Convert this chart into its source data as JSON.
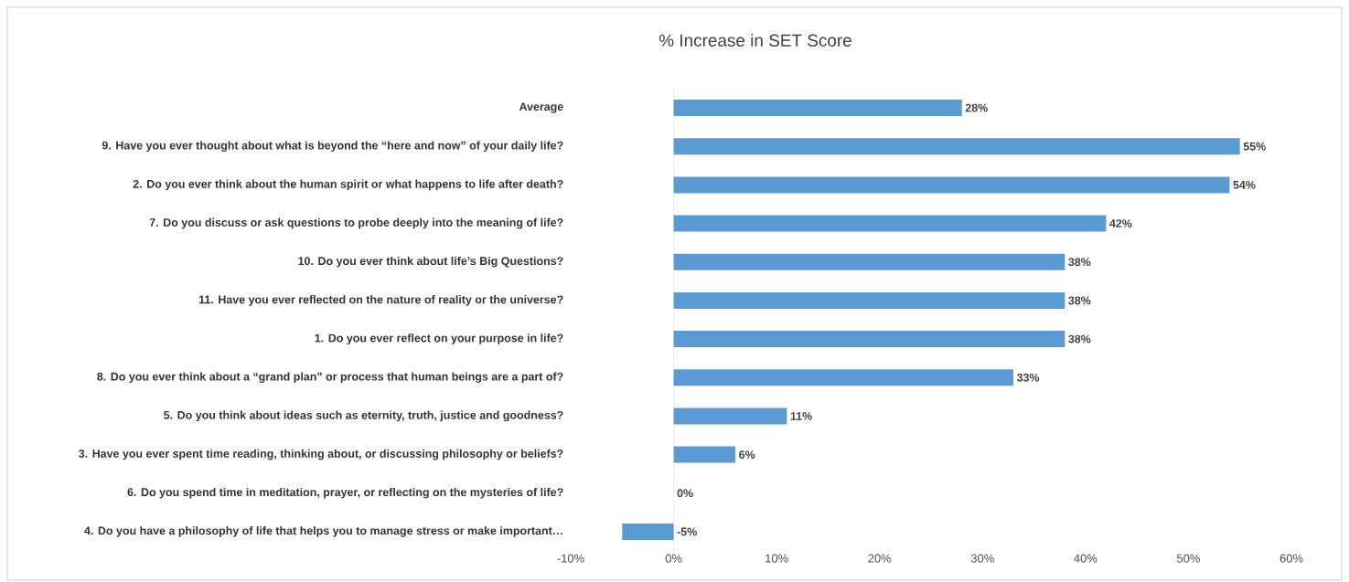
{
  "chart_data": {
    "type": "bar",
    "orientation": "horizontal",
    "title": "% Increase in SET Score",
    "categories": [
      "Average",
      "9. Have you ever thought about what is beyond the “here and now” of your daily life?",
      "2. Do you ever think about the human spirit or what happens to life after death?",
      "7. Do you discuss or ask questions to probe deeply into the meaning of life?",
      "10. Do you ever think about life’s Big Questions?",
      "11. Have you ever reflected on the nature of reality or the universe?",
      "1. Do you ever reflect on your purpose in life?",
      "8. Do you ever think about a “grand plan” or process that human beings are a part of?",
      "5. Do you think about ideas such as eternity, truth, justice and goodness?",
      "3. Have you ever spent time reading, thinking about, or discussing philosophy or beliefs?",
      "6. Do you spend time in meditation, prayer, or reflecting on the mysteries of life?",
      "4. Do you have a philosophy of life that helps you to manage stress or make important…"
    ],
    "values": [
      28,
      55,
      54,
      42,
      38,
      38,
      38,
      33,
      11,
      6,
      0,
      -5
    ],
    "value_labels": [
      "28%",
      "55%",
      "54%",
      "42%",
      "38%",
      "38%",
      "38%",
      "33%",
      "11%",
      "6%",
      "0%",
      "-5%"
    ],
    "color": "#5b9bd5",
    "xlim": [
      -10,
      60
    ],
    "xticks": [
      {
        "value": -10,
        "label": "-10%"
      },
      {
        "value": 0,
        "label": "0%"
      },
      {
        "value": 10,
        "label": "10%"
      },
      {
        "value": 20,
        "label": "20%"
      },
      {
        "value": 30,
        "label": "30%"
      },
      {
        "value": 40,
        "label": "40%"
      },
      {
        "value": 50,
        "label": "50%"
      },
      {
        "value": 60,
        "label": "60%"
      }
    ]
  }
}
